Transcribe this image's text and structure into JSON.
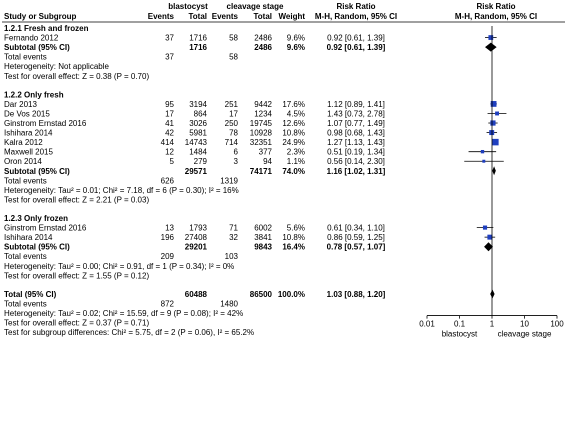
{
  "chart_data": {
    "type": "forest",
    "header": {
      "group_left": "blastocyst",
      "group_right": "cleavage stage",
      "rr_title": "Risk Ratio",
      "rr_title2": "Risk Ratio",
      "col_study": "Study or Subgroup",
      "col_events_a": "Events",
      "col_total_a": "Total",
      "col_events_b": "Events",
      "col_total_b": "Total",
      "col_weight": "Weight",
      "col_method": "M-H, Random, 95% CI",
      "col_method2": "M-H, Random, 95% CI"
    },
    "subgroups": [
      {
        "title": "1.2.1 Fresh and frozen",
        "studies": [
          {
            "name": "Fernando 2012",
            "ev_a": "37",
            "tot_a": "1716",
            "ev_b": "58",
            "tot_b": "2486",
            "weight": "9.6%",
            "ci_text": "0.92 [0.61, 1.39]",
            "rr": 0.92,
            "lo": 0.61,
            "hi": 1.39,
            "w": 9.6
          }
        ],
        "subtotal": {
          "label": "Subtotal (95% CI)",
          "tot_a": "1716",
          "tot_b": "2486",
          "weight": "9.6%",
          "ci_text": "0.92 [0.61, 1.39]",
          "rr": 0.92,
          "lo": 0.61,
          "hi": 1.39
        },
        "total_events": {
          "label": "Total events",
          "a": "37",
          "b": "58"
        },
        "lines": [
          "Heterogeneity: Not applicable",
          "Test for overall effect: Z = 0.38 (P = 0.70)"
        ]
      },
      {
        "title": "1.2.2 Only fresh",
        "studies": [
          {
            "name": "Dar 2013",
            "ev_a": "95",
            "tot_a": "3194",
            "ev_b": "251",
            "tot_b": "9442",
            "weight": "17.6%",
            "ci_text": "1.12 [0.89, 1.41]",
            "rr": 1.12,
            "lo": 0.89,
            "hi": 1.41,
            "w": 17.6
          },
          {
            "name": "De Vos 2015",
            "ev_a": "17",
            "tot_a": "864",
            "ev_b": "17",
            "tot_b": "1234",
            "weight": "4.5%",
            "ci_text": "1.43 [0.73, 2.78]",
            "rr": 1.43,
            "lo": 0.73,
            "hi": 2.78,
            "w": 4.5
          },
          {
            "name": "Ginstrom Ernstad 2016",
            "ev_a": "41",
            "tot_a": "3026",
            "ev_b": "250",
            "tot_b": "19745",
            "weight": "12.6%",
            "ci_text": "1.07 [0.77, 1.49]",
            "rr": 1.07,
            "lo": 0.77,
            "hi": 1.49,
            "w": 12.6
          },
          {
            "name": "Ishihara 2014",
            "ev_a": "42",
            "tot_a": "5981",
            "ev_b": "78",
            "tot_b": "10928",
            "weight": "10.8%",
            "ci_text": "0.98 [0.68, 1.43]",
            "rr": 0.98,
            "lo": 0.68,
            "hi": 1.43,
            "w": 10.8
          },
          {
            "name": "Kalra 2012",
            "ev_a": "414",
            "tot_a": "14743",
            "ev_b": "714",
            "tot_b": "32351",
            "weight": "24.9%",
            "ci_text": "1.27 [1.13, 1.43]",
            "rr": 1.27,
            "lo": 1.13,
            "hi": 1.43,
            "w": 24.9
          },
          {
            "name": "Maxwell 2015",
            "ev_a": "12",
            "tot_a": "1484",
            "ev_b": "6",
            "tot_b": "377",
            "weight": "2.3%",
            "ci_text": "0.51 [0.19, 1.34]",
            "rr": 0.51,
            "lo": 0.19,
            "hi": 1.34,
            "w": 2.3
          },
          {
            "name": "Oron 2014",
            "ev_a": "5",
            "tot_a": "279",
            "ev_b": "3",
            "tot_b": "94",
            "weight": "1.1%",
            "ci_text": "0.56 [0.14, 2.30]",
            "rr": 0.56,
            "lo": 0.14,
            "hi": 2.3,
            "w": 1.1
          }
        ],
        "subtotal": {
          "label": "Subtotal (95% CI)",
          "tot_a": "29571",
          "tot_b": "74171",
          "weight": "74.0%",
          "ci_text": "1.16 [1.02, 1.31]",
          "rr": 1.16,
          "lo": 1.02,
          "hi": 1.31
        },
        "total_events": {
          "label": "Total events",
          "a": "626",
          "b": "1319"
        },
        "lines": [
          "Heterogeneity: Tau² = 0.01; Chi² = 7.18, df = 6 (P = 0.30); I² = 16%",
          "Test for overall effect: Z = 2.21 (P = 0.03)"
        ]
      },
      {
        "title": "1.2.3 Only frozen",
        "studies": [
          {
            "name": "Ginstrom Ernstad 2016",
            "ev_a": "13",
            "tot_a": "1793",
            "ev_b": "71",
            "tot_b": "6002",
            "weight": "5.6%",
            "ci_text": "0.61 [0.34, 1.10]",
            "rr": 0.61,
            "lo": 0.34,
            "hi": 1.1,
            "w": 5.6
          },
          {
            "name": "Ishihara 2014",
            "ev_a": "196",
            "tot_a": "27408",
            "ev_b": "32",
            "tot_b": "3841",
            "weight": "10.8%",
            "ci_text": "0.86 [0.59, 1.25]",
            "rr": 0.86,
            "lo": 0.59,
            "hi": 1.25,
            "w": 10.8
          }
        ],
        "subtotal": {
          "label": "Subtotal (95% CI)",
          "tot_a": "29201",
          "tot_b": "9843",
          "weight": "16.4%",
          "ci_text": "0.78 [0.57, 1.07]",
          "rr": 0.78,
          "lo": 0.57,
          "hi": 1.07
        },
        "total_events": {
          "label": "Total events",
          "a": "209",
          "b": "103"
        },
        "lines": [
          "Heterogeneity: Tau² = 0.00; Chi² = 0.91, df = 1 (P = 0.34); I² = 0%",
          "Test for overall effect: Z = 1.55 (P = 0.12)"
        ]
      }
    ],
    "overall": {
      "label": "Total (95% CI)",
      "tot_a": "60488",
      "tot_b": "86500",
      "weight": "100.0%",
      "ci_text": "1.03 [0.88, 1.20]",
      "rr": 1.03,
      "lo": 0.88,
      "hi": 1.2
    },
    "overall_events": {
      "label": "Total events",
      "a": "872",
      "b": "1480"
    },
    "overall_lines": [
      "Heterogeneity: Tau² = 0.02; Chi² = 15.59, df = 9 (P = 0.08); I² = 42%",
      "Test for overall effect: Z = 0.37 (P = 0.71)",
      "Test for subgroup differences: Chi² = 5.75, df = 2 (P = 0.06), I² = 65.2%"
    ],
    "axis": {
      "scale": "log",
      "min": 0.01,
      "max": 100,
      "ticks": [
        0.01,
        0.1,
        1,
        10,
        100
      ],
      "tick_labels": [
        "0.01",
        "0.1",
        "1",
        "10",
        "100"
      ],
      "label_left": "blastocyst",
      "label_right": "cleavage stage"
    },
    "colors": {
      "study_marker": "#1f3fbf",
      "summary": "#000000",
      "text": "#000000"
    }
  }
}
